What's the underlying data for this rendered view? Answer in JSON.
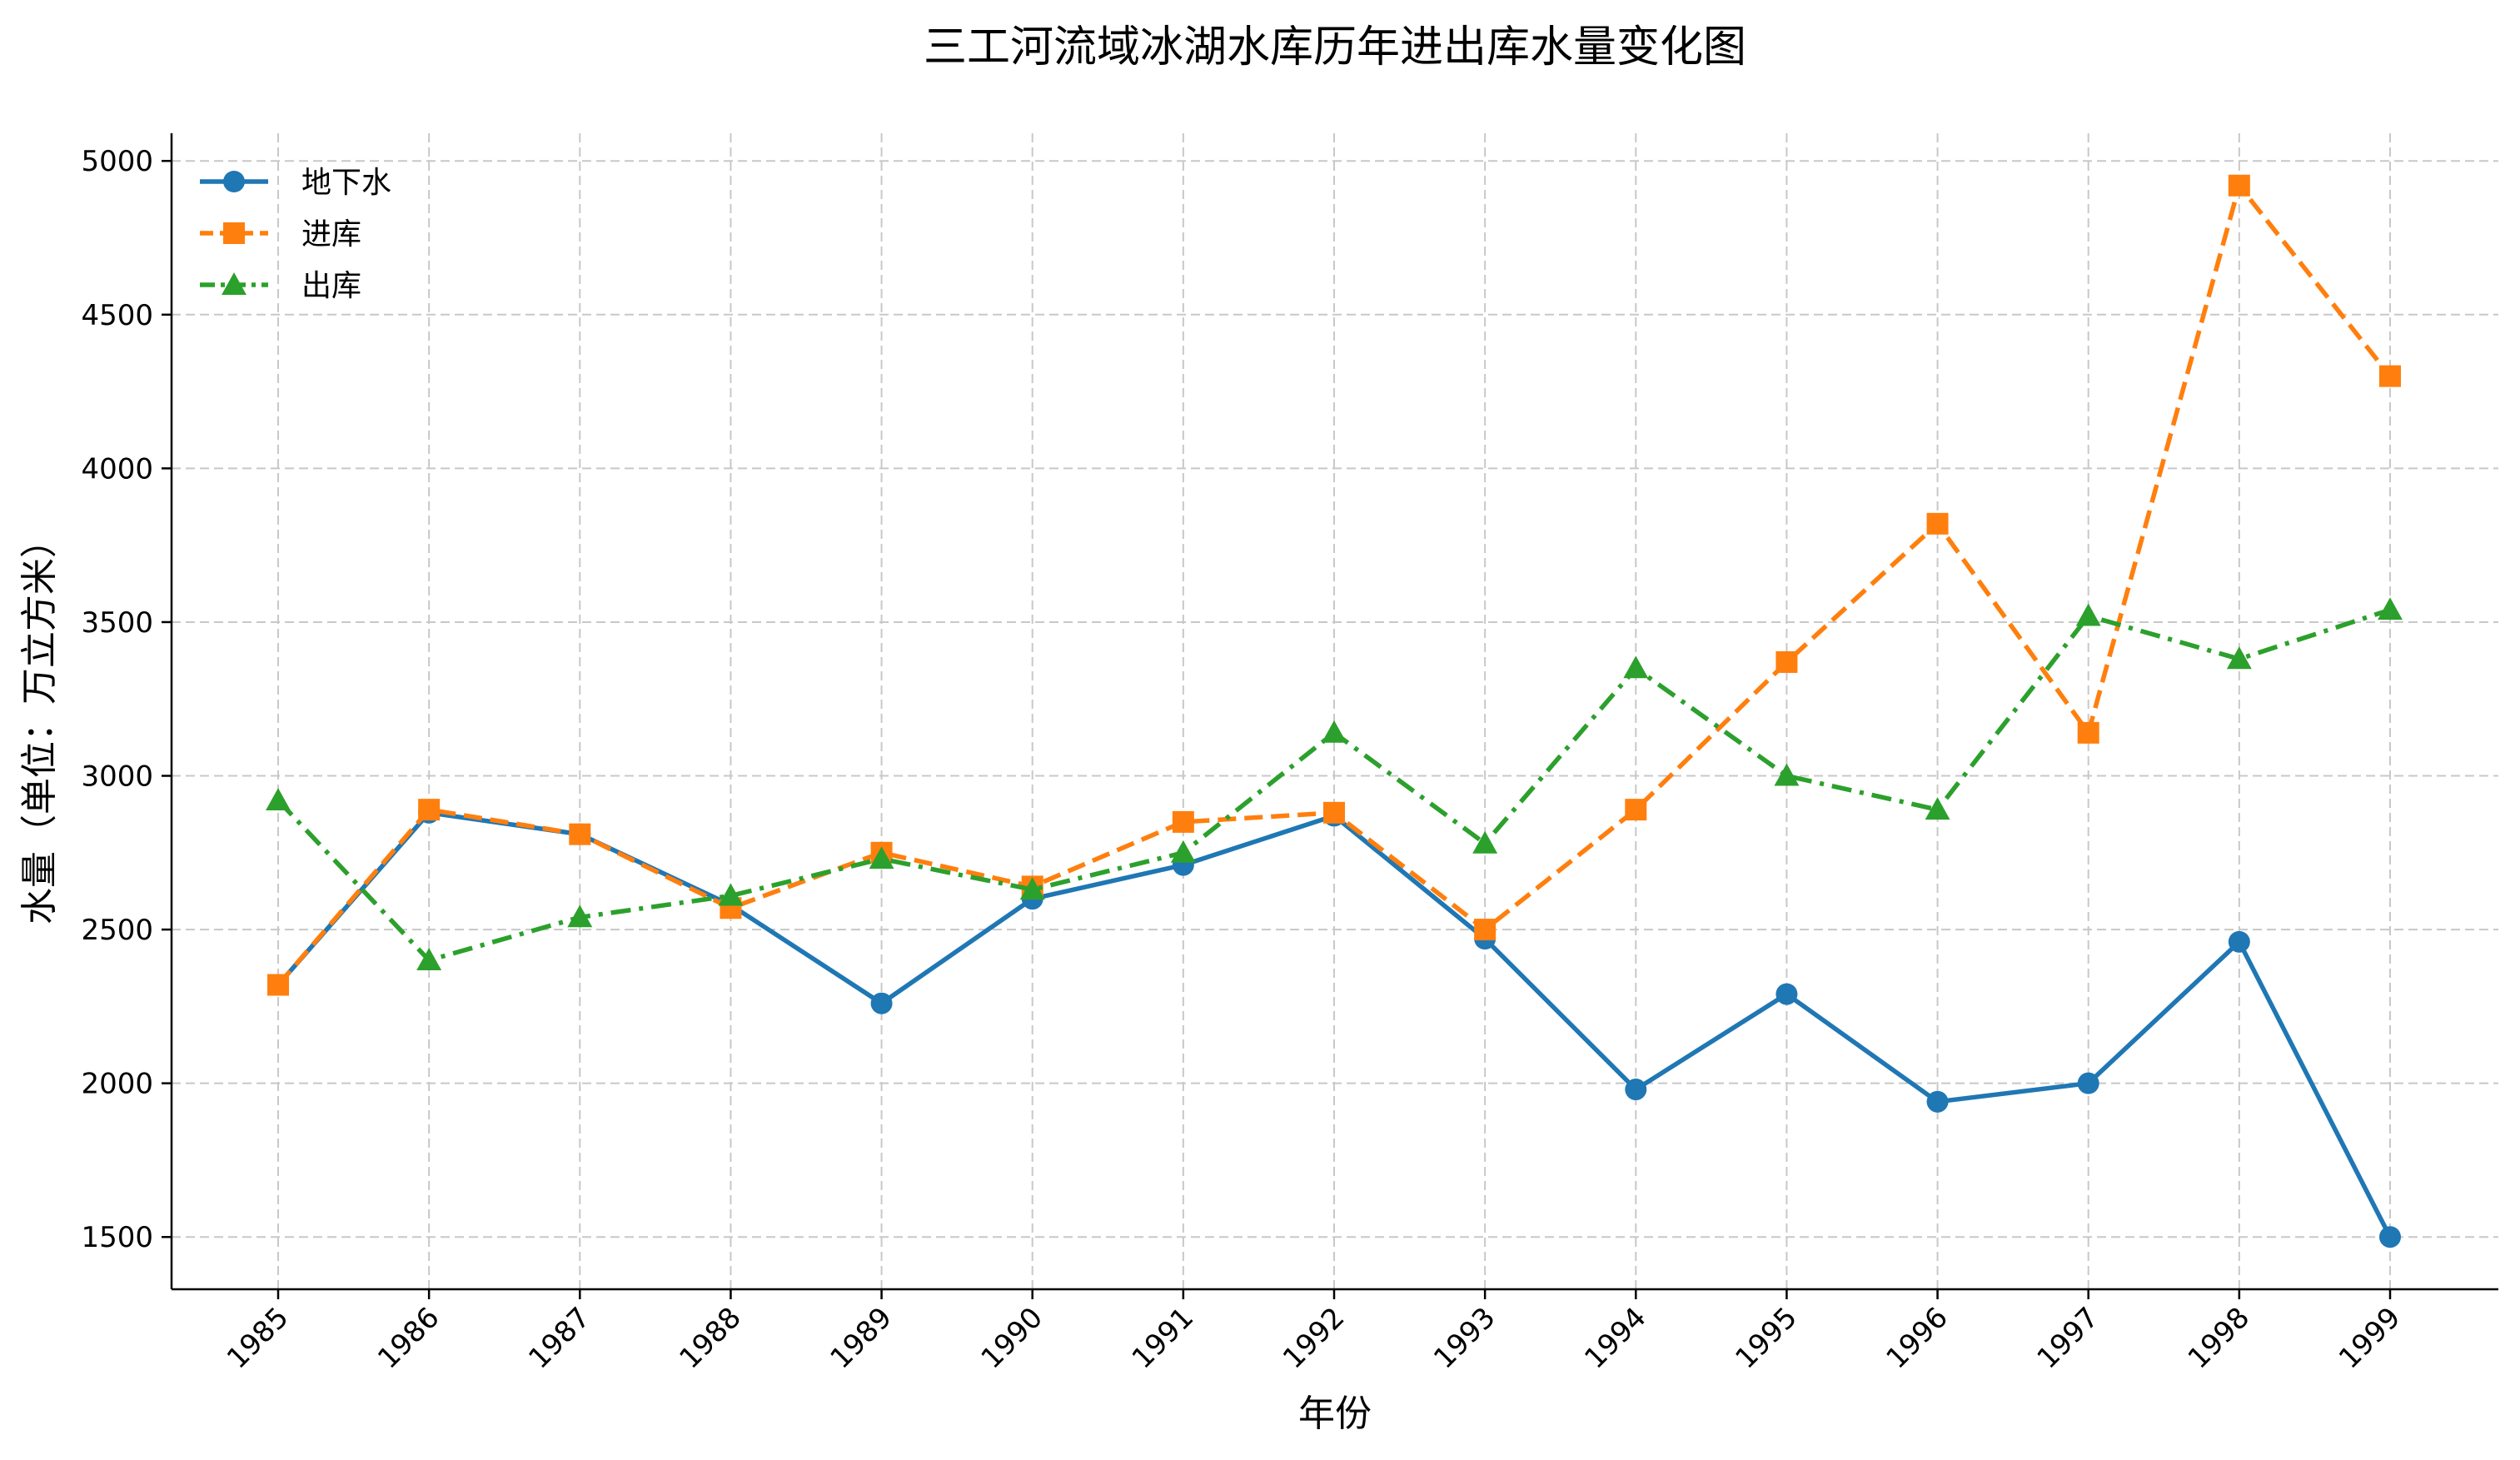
{
  "chart_data": {
    "type": "line",
    "title": "三工河流域冰湖水库历年进出库水量变化图",
    "xlabel": "年份",
    "ylabel": "水量（单位：万立方米）",
    "categories": [
      "1985",
      "1986",
      "1987",
      "1988",
      "1989",
      "1990",
      "1991",
      "1992",
      "1993",
      "1994",
      "1995",
      "1996",
      "1997",
      "1998",
      "1999"
    ],
    "ylim": [
      1330,
      5090
    ],
    "yticks": [
      1500,
      2000,
      2500,
      3000,
      3500,
      4000,
      4500,
      5000
    ],
    "grid": true,
    "legend_position": "top-left",
    "series": [
      {
        "name": "地下水",
        "color": "#1f77b4",
        "marker": "circle",
        "linestyle": "solid",
        "values": [
          2320,
          2880,
          2810,
          2580,
          2260,
          2600,
          2710,
          2870,
          2470,
          1980,
          2290,
          1940,
          2000,
          2460,
          1500
        ]
      },
      {
        "name": "进库",
        "color": "#ff7f0e",
        "marker": "square",
        "linestyle": "dashed",
        "values": [
          2320,
          2890,
          2810,
          2570,
          2750,
          2640,
          2850,
          2880,
          2500,
          2890,
          3370,
          3820,
          3140,
          4920,
          4300
        ]
      },
      {
        "name": "出库",
        "color": "#2ca02c",
        "marker": "triangle",
        "linestyle": "dashdot",
        "values": [
          2920,
          2400,
          2540,
          2610,
          2730,
          2630,
          2750,
          3140,
          2780,
          3350,
          3000,
          2890,
          3520,
          3380,
          3540
        ]
      }
    ]
  }
}
